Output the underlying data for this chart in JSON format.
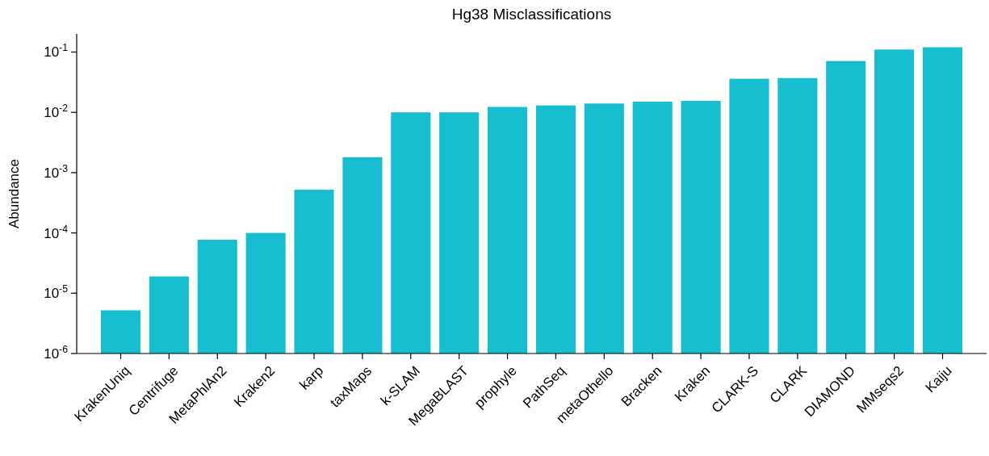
{
  "chart_data": {
    "type": "bar",
    "title": "Hg38 Misclassifications",
    "ylabel": "Abundance",
    "categories": [
      "KrakenUniq",
      "Centrifuge",
      "MetaPhlAn2",
      "Kraken2",
      "karp",
      "taxMaps",
      "k-SLAM",
      "MegaBLAST",
      "prophyle",
      "PathSeq",
      "metaOthello",
      "Bracken",
      "Kraken",
      "CLARK-S",
      "CLARK",
      "DIAMOND",
      "MMseqs2",
      "Kaiju"
    ],
    "values": [
      5.2e-06,
      1.9e-05,
      7.7e-05,
      0.0001,
      0.00052,
      0.0018,
      0.01,
      0.01,
      0.0123,
      0.013,
      0.014,
      0.015,
      0.0155,
      0.036,
      0.037,
      0.071,
      0.11,
      0.12
    ],
    "color": "#17becf",
    "log": true,
    "ylim": [
      1e-06,
      0.2
    ],
    "yticks": [
      {
        "value": 1e-06,
        "label": "10$^{-6}$"
      },
      {
        "value": 1e-05,
        "label": "10$^{-5}$"
      },
      {
        "value": 0.0001,
        "label": "10$^{-4}$"
      },
      {
        "value": 0.001,
        "label": "10$^{-3}$"
      },
      {
        "value": 0.01,
        "label": "10$^{-2}$"
      },
      {
        "value": 0.1,
        "label": "10$^{-1}$"
      }
    ],
    "grid": false
  }
}
